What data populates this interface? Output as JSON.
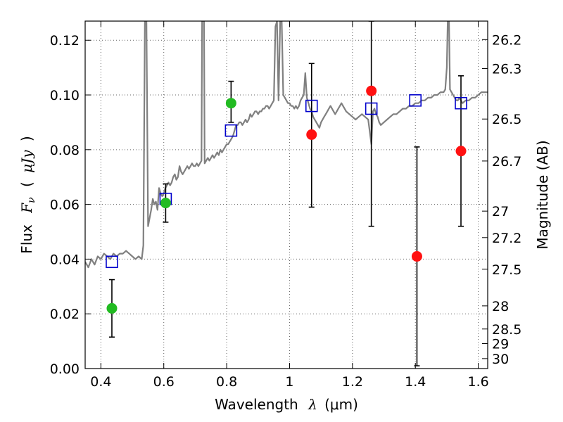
{
  "chart_data": {
    "type": "scatter",
    "title": "",
    "xlabel": "Wavelength  λ (μm)",
    "ylabel": "Flux  F_ν  ( μJy )",
    "ylabel_parts": {
      "flux": "Flux",
      "fnu": "F",
      "nu": "ν",
      "open": "(",
      "unit": "μJy",
      "close": ")"
    },
    "xlabel_parts": {
      "word": "Wavelength",
      "lambda": "λ",
      "unit": "(μm)"
    },
    "y2label": "Magnitude (AB)",
    "xlim": [
      0.35,
      1.63
    ],
    "ylim": [
      0.0,
      0.127
    ],
    "grid": true,
    "x_ticks": [
      {
        "value": 0.4,
        "label": "0.4"
      },
      {
        "value": 0.6,
        "label": "0.6"
      },
      {
        "value": 0.8,
        "label": "0.8"
      },
      {
        "value": 1.0,
        "label": "1"
      },
      {
        "value": 1.2,
        "label": "1.2"
      },
      {
        "value": 1.4,
        "label": "1.4"
      },
      {
        "value": 1.6,
        "label": "1.6"
      }
    ],
    "y_ticks": [
      {
        "value": 0.0,
        "label": "0.00"
      },
      {
        "value": 0.02,
        "label": "0.02"
      },
      {
        "value": 0.04,
        "label": "0.04"
      },
      {
        "value": 0.06,
        "label": "0.06"
      },
      {
        "value": 0.08,
        "label": "0.08"
      },
      {
        "value": 0.1,
        "label": "0.10"
      },
      {
        "value": 0.12,
        "label": "0.12"
      }
    ],
    "y2_ticks": [
      {
        "mag": 26.2,
        "label": "26.2"
      },
      {
        "mag": 26.3,
        "label": "26.3"
      },
      {
        "mag": 26.5,
        "label": "26.5"
      },
      {
        "mag": 26.7,
        "label": "26.7"
      },
      {
        "mag": 27.0,
        "label": "27"
      },
      {
        "mag": 27.2,
        "label": "27.2"
      },
      {
        "mag": 27.5,
        "label": "27.5"
      },
      {
        "mag": 28.0,
        "label": "28"
      },
      {
        "mag": 28.5,
        "label": "28.5"
      },
      {
        "mag": 29.0,
        "label": "29"
      },
      {
        "mag": 30.0,
        "label": "30"
      }
    ],
    "colors": {
      "sed": "#808080",
      "model_points": "#0000cc",
      "optical_points": "#22bb22",
      "nir_points": "#ff1111",
      "errorbar": "#000000"
    },
    "sed_model": [
      [
        0.35,
        0.039
      ],
      [
        0.36,
        0.037
      ],
      [
        0.37,
        0.04
      ],
      [
        0.38,
        0.038
      ],
      [
        0.39,
        0.041
      ],
      [
        0.4,
        0.04
      ],
      [
        0.41,
        0.042
      ],
      [
        0.42,
        0.041
      ],
      [
        0.43,
        0.04
      ],
      [
        0.44,
        0.042
      ],
      [
        0.45,
        0.041
      ],
      [
        0.46,
        0.042
      ],
      [
        0.47,
        0.042
      ],
      [
        0.48,
        0.043
      ],
      [
        0.49,
        0.042
      ],
      [
        0.5,
        0.041
      ],
      [
        0.51,
        0.04
      ],
      [
        0.52,
        0.041
      ],
      [
        0.53,
        0.04
      ],
      [
        0.535,
        0.045
      ],
      [
        0.54,
        0.127
      ],
      [
        0.545,
        0.127
      ],
      [
        0.55,
        0.052
      ],
      [
        0.555,
        0.055
      ],
      [
        0.56,
        0.058
      ],
      [
        0.565,
        0.062
      ],
      [
        0.57,
        0.06
      ],
      [
        0.575,
        0.061
      ],
      [
        0.58,
        0.058
      ],
      [
        0.585,
        0.066
      ],
      [
        0.59,
        0.064
      ],
      [
        0.595,
        0.063
      ],
      [
        0.6,
        0.064
      ],
      [
        0.605,
        0.066
      ],
      [
        0.61,
        0.067
      ],
      [
        0.615,
        0.068
      ],
      [
        0.62,
        0.067
      ],
      [
        0.625,
        0.068
      ],
      [
        0.63,
        0.07
      ],
      [
        0.635,
        0.071
      ],
      [
        0.64,
        0.069
      ],
      [
        0.645,
        0.07
      ],
      [
        0.65,
        0.074
      ],
      [
        0.655,
        0.072
      ],
      [
        0.66,
        0.071
      ],
      [
        0.665,
        0.072
      ],
      [
        0.67,
        0.073
      ],
      [
        0.675,
        0.074
      ],
      [
        0.68,
        0.073
      ],
      [
        0.685,
        0.074
      ],
      [
        0.69,
        0.075
      ],
      [
        0.695,
        0.074
      ],
      [
        0.7,
        0.074
      ],
      [
        0.705,
        0.075
      ],
      [
        0.71,
        0.074
      ],
      [
        0.715,
        0.075
      ],
      [
        0.72,
        0.076
      ],
      [
        0.722,
        0.127
      ],
      [
        0.728,
        0.127
      ],
      [
        0.73,
        0.075
      ],
      [
        0.735,
        0.076
      ],
      [
        0.74,
        0.077
      ],
      [
        0.745,
        0.076
      ],
      [
        0.75,
        0.077
      ],
      [
        0.755,
        0.078
      ],
      [
        0.76,
        0.077
      ],
      [
        0.765,
        0.078
      ],
      [
        0.77,
        0.079
      ],
      [
        0.775,
        0.078
      ],
      [
        0.78,
        0.08
      ],
      [
        0.785,
        0.079
      ],
      [
        0.79,
        0.08
      ],
      [
        0.795,
        0.081
      ],
      [
        0.8,
        0.082
      ],
      [
        0.805,
        0.082
      ],
      [
        0.81,
        0.083
      ],
      [
        0.815,
        0.084
      ],
      [
        0.82,
        0.085
      ],
      [
        0.825,
        0.087
      ],
      [
        0.83,
        0.089
      ],
      [
        0.835,
        0.089
      ],
      [
        0.84,
        0.09
      ],
      [
        0.845,
        0.09
      ],
      [
        0.85,
        0.089
      ],
      [
        0.855,
        0.09
      ],
      [
        0.86,
        0.091
      ],
      [
        0.865,
        0.09
      ],
      [
        0.87,
        0.091
      ],
      [
        0.875,
        0.093
      ],
      [
        0.88,
        0.092
      ],
      [
        0.885,
        0.093
      ],
      [
        0.89,
        0.094
      ],
      [
        0.895,
        0.094
      ],
      [
        0.9,
        0.093
      ],
      [
        0.905,
        0.094
      ],
      [
        0.91,
        0.094
      ],
      [
        0.915,
        0.095
      ],
      [
        0.92,
        0.095
      ],
      [
        0.925,
        0.096
      ],
      [
        0.93,
        0.096
      ],
      [
        0.935,
        0.095
      ],
      [
        0.94,
        0.096
      ],
      [
        0.945,
        0.097
      ],
      [
        0.95,
        0.098
      ],
      [
        0.955,
        0.125
      ],
      [
        0.96,
        0.127
      ],
      [
        0.965,
        0.098
      ],
      [
        0.97,
        0.127
      ],
      [
        0.975,
        0.127
      ],
      [
        0.98,
        0.1
      ],
      [
        0.985,
        0.099
      ],
      [
        0.99,
        0.098
      ],
      [
        0.995,
        0.097
      ],
      [
        1.0,
        0.097
      ],
      [
        1.005,
        0.096
      ],
      [
        1.01,
        0.096
      ],
      [
        1.015,
        0.095
      ],
      [
        1.02,
        0.096
      ],
      [
        1.025,
        0.095
      ],
      [
        1.03,
        0.096
      ],
      [
        1.035,
        0.098
      ],
      [
        1.04,
        0.099
      ],
      [
        1.045,
        0.1
      ],
      [
        1.05,
        0.108
      ],
      [
        1.055,
        0.099
      ],
      [
        1.06,
        0.097
      ],
      [
        1.065,
        0.095
      ],
      [
        1.07,
        0.094
      ],
      [
        1.075,
        0.092
      ],
      [
        1.08,
        0.091
      ],
      [
        1.085,
        0.09
      ],
      [
        1.09,
        0.089
      ],
      [
        1.095,
        0.088
      ],
      [
        1.1,
        0.09
      ],
      [
        1.105,
        0.091
      ],
      [
        1.11,
        0.092
      ],
      [
        1.115,
        0.093
      ],
      [
        1.12,
        0.094
      ],
      [
        1.125,
        0.095
      ],
      [
        1.13,
        0.096
      ],
      [
        1.135,
        0.095
      ],
      [
        1.14,
        0.094
      ],
      [
        1.145,
        0.093
      ],
      [
        1.15,
        0.094
      ],
      [
        1.155,
        0.095
      ],
      [
        1.16,
        0.096
      ],
      [
        1.165,
        0.097
      ],
      [
        1.17,
        0.096
      ],
      [
        1.175,
        0.095
      ],
      [
        1.18,
        0.094
      ],
      [
        1.19,
        0.093
      ],
      [
        1.2,
        0.092
      ],
      [
        1.21,
        0.091
      ],
      [
        1.22,
        0.092
      ],
      [
        1.23,
        0.093
      ],
      [
        1.24,
        0.092
      ],
      [
        1.25,
        0.091
      ],
      [
        1.26,
        0.082
      ],
      [
        1.265,
        0.094
      ],
      [
        1.27,
        0.095
      ],
      [
        1.275,
        0.093
      ],
      [
        1.28,
        0.092
      ],
      [
        1.285,
        0.09
      ],
      [
        1.29,
        0.089
      ],
      [
        1.3,
        0.09
      ],
      [
        1.31,
        0.091
      ],
      [
        1.32,
        0.092
      ],
      [
        1.33,
        0.093
      ],
      [
        1.34,
        0.093
      ],
      [
        1.35,
        0.094
      ],
      [
        1.36,
        0.095
      ],
      [
        1.37,
        0.095
      ],
      [
        1.38,
        0.096
      ],
      [
        1.39,
        0.096
      ],
      [
        1.4,
        0.097
      ],
      [
        1.41,
        0.097
      ],
      [
        1.42,
        0.098
      ],
      [
        1.43,
        0.098
      ],
      [
        1.44,
        0.099
      ],
      [
        1.45,
        0.099
      ],
      [
        1.46,
        0.1
      ],
      [
        1.47,
        0.1
      ],
      [
        1.48,
        0.101
      ],
      [
        1.49,
        0.101
      ],
      [
        1.495,
        0.102
      ],
      [
        1.5,
        0.11
      ],
      [
        1.503,
        0.127
      ],
      [
        1.507,
        0.127
      ],
      [
        1.51,
        0.102
      ],
      [
        1.515,
        0.101
      ],
      [
        1.52,
        0.1
      ],
      [
        1.525,
        0.099
      ],
      [
        1.53,
        0.098
      ],
      [
        1.535,
        0.098
      ],
      [
        1.54,
        0.099
      ],
      [
        1.545,
        0.098
      ],
      [
        1.55,
        0.097
      ],
      [
        1.56,
        0.098
      ],
      [
        1.57,
        0.098
      ],
      [
        1.58,
        0.099
      ],
      [
        1.59,
        0.099
      ],
      [
        1.6,
        0.1
      ],
      [
        1.61,
        0.101
      ],
      [
        1.62,
        0.101
      ],
      [
        1.63,
        0.101
      ]
    ],
    "model_photometry": [
      {
        "x": 0.435,
        "y": 0.039
      },
      {
        "x": 0.606,
        "y": 0.062
      },
      {
        "x": 0.814,
        "y": 0.087
      },
      {
        "x": 1.07,
        "y": 0.096
      },
      {
        "x": 1.26,
        "y": 0.095
      },
      {
        "x": 1.4,
        "y": 0.098
      },
      {
        "x": 1.545,
        "y": 0.097
      }
    ],
    "optical_photometry": [
      {
        "x": 0.435,
        "y": 0.022,
        "yerr_low": 0.0115,
        "yerr_high": 0.0325
      },
      {
        "x": 0.606,
        "y": 0.0605,
        "yerr_low": 0.0535,
        "yerr_high": 0.0675
      },
      {
        "x": 0.814,
        "y": 0.097,
        "yerr_low": 0.09,
        "yerr_high": 0.105
      }
    ],
    "nir_photometry": [
      {
        "x": 1.07,
        "y": 0.0855,
        "yerr_low": 0.059,
        "yerr_high": 0.1115
      },
      {
        "x": 1.26,
        "y": 0.1015,
        "yerr_low": 0.052,
        "yerr_high": 0.127
      },
      {
        "x": 1.405,
        "y": 0.041,
        "yerr_low": 0.001,
        "yerr_high": 0.081
      },
      {
        "x": 1.545,
        "y": 0.0795,
        "yerr_low": 0.052,
        "yerr_high": 0.107
      }
    ]
  }
}
